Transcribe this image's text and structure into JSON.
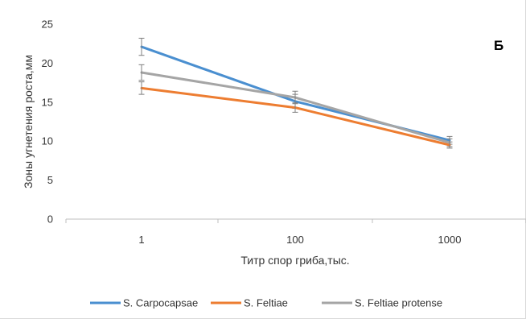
{
  "chart_data": {
    "type": "line",
    "panel_label": "Б",
    "xlabel": "Титр спор гриба,тыс.",
    "ylabel": "Зоны угнетения роста,мм",
    "categories": [
      "1",
      "100",
      "1000"
    ],
    "ylim": [
      0,
      25
    ],
    "yticks": [
      0,
      5,
      10,
      15,
      20,
      25
    ],
    "grid": false,
    "legend_position": "bottom",
    "series": [
      {
        "name": "S. Carpocapsae",
        "color": "#4a8fd0",
        "values": [
          22.1,
          15.1,
          10.1
        ],
        "errors": [
          1.1,
          0.9,
          0.5
        ]
      },
      {
        "name": "S. Feltiae",
        "color": "#ed7d31",
        "values": [
          16.8,
          14.3,
          9.5
        ],
        "errors": [
          0.8,
          0.6,
          0.4
        ]
      },
      {
        "name": "S. Feltiae protense",
        "color": "#a5a5a5",
        "values": [
          18.8,
          15.6,
          9.8
        ],
        "errors": [
          1.0,
          0.8,
          0.5
        ]
      }
    ]
  }
}
